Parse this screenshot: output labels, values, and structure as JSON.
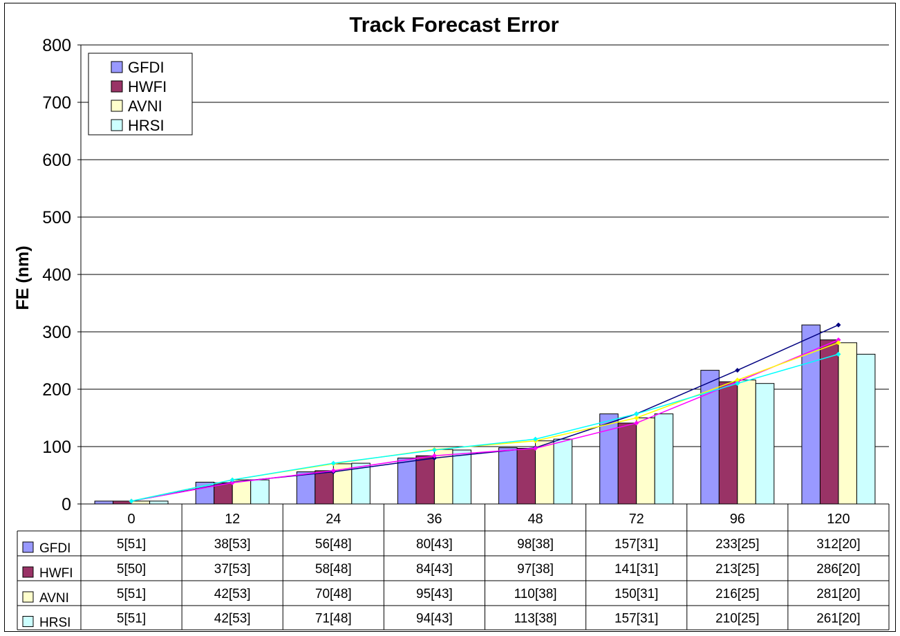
{
  "chart_data": {
    "type": "bar",
    "title": "Track Forecast Error",
    "ylabel": "FE (nm)",
    "xlabel": "",
    "ylim": [
      0,
      800
    ],
    "yticks": [
      0,
      100,
      200,
      300,
      400,
      500,
      600,
      700,
      800
    ],
    "grid": true,
    "legend_position": "top-left",
    "categories": [
      "0",
      "12",
      "24",
      "36",
      "48",
      "72",
      "96",
      "120"
    ],
    "series": [
      {
        "name": "GFDI",
        "values": [
          5,
          38,
          56,
          80,
          98,
          157,
          233,
          312
        ],
        "table_labels": [
          "5[51]",
          "38[53]",
          "56[48]",
          "80[43]",
          "98[38]",
          "157[31]",
          "233[25]",
          "312[20]"
        ],
        "bar_color": "#9999ff",
        "line_color": "#000080"
      },
      {
        "name": "HWFI",
        "values": [
          5,
          37,
          58,
          84,
          97,
          141,
          213,
          286
        ],
        "table_labels": [
          "5[50]",
          "37[53]",
          "58[48]",
          "84[43]",
          "97[38]",
          "141[31]",
          "213[25]",
          "286[20]"
        ],
        "bar_color": "#993366",
        "line_color": "#ff00ff"
      },
      {
        "name": "AVNI",
        "values": [
          5,
          42,
          70,
          95,
          110,
          150,
          216,
          281
        ],
        "table_labels": [
          "5[51]",
          "42[53]",
          "70[48]",
          "95[43]",
          "110[38]",
          "150[31]",
          "216[25]",
          "281[20]"
        ],
        "bar_color": "#ffffcc",
        "line_color": "#ffff00"
      },
      {
        "name": "HRSI",
        "values": [
          5,
          42,
          71,
          94,
          113,
          157,
          210,
          261
        ],
        "table_labels": [
          "5[51]",
          "42[53]",
          "71[48]",
          "94[43]",
          "113[38]",
          "157[31]",
          "210[25]",
          "261[20]"
        ],
        "bar_color": "#ccffff",
        "line_color": "#00ffff"
      }
    ]
  }
}
